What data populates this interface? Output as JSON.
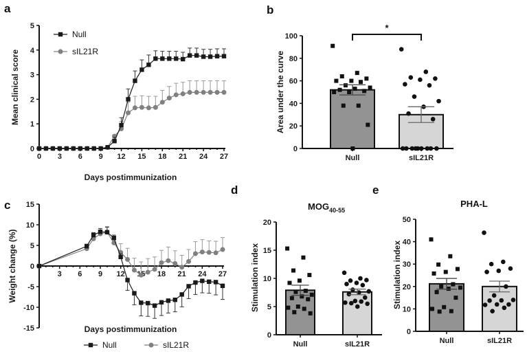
{
  "panel_labels": {
    "a": "a",
    "b": "b",
    "c": "c",
    "d": "d",
    "e": "e"
  },
  "colors": {
    "null": "#1a1a1a",
    "sil21r": "#808080",
    "null_bar": "#939393",
    "sil21r_bar": "#d6d6d6"
  },
  "chart_data": [
    {
      "id": "a",
      "type": "line",
      "title": "",
      "xlabel": "Days postimmunization",
      "ylabel": "Mean clinical score",
      "xlim": [
        0,
        27
      ],
      "ylim": [
        0,
        5
      ],
      "xticks": [
        "0",
        "3",
        "6",
        "9",
        "12",
        "15",
        "18",
        "21",
        "24",
        "27"
      ],
      "yticks": [
        "0",
        "1",
        "2",
        "3",
        "4",
        "5"
      ],
      "legend": {
        "placement": "top-left",
        "entries": [
          "Null",
          "sIL21R"
        ]
      },
      "x": [
        0,
        1,
        2,
        3,
        4,
        5,
        6,
        7,
        8,
        9,
        10,
        11,
        12,
        13,
        14,
        15,
        16,
        17,
        18,
        19,
        20,
        21,
        22,
        23,
        24,
        25,
        26,
        27
      ],
      "series": [
        {
          "name": "Null",
          "marker": "square",
          "values": [
            0,
            0,
            0,
            0,
            0,
            0,
            0,
            0,
            0,
            0,
            0.05,
            0.3,
            0.95,
            2.0,
            2.75,
            3.2,
            3.4,
            3.65,
            3.65,
            3.65,
            3.65,
            3.63,
            3.78,
            3.78,
            3.73,
            3.73,
            3.75,
            3.75
          ],
          "sem": [
            0,
            0,
            0,
            0,
            0,
            0,
            0,
            0,
            0,
            0,
            0.02,
            0.15,
            0.3,
            0.42,
            0.4,
            0.4,
            0.4,
            0.32,
            0.3,
            0.3,
            0.3,
            0.28,
            0.3,
            0.3,
            0.3,
            0.3,
            0.3,
            0.3
          ]
        },
        {
          "name": "sIL21R",
          "marker": "circle",
          "values": [
            0,
            0,
            0,
            0,
            0,
            0,
            0,
            0,
            0,
            0,
            0.05,
            0.5,
            0.8,
            1.45,
            1.65,
            1.67,
            1.65,
            1.67,
            1.88,
            2.05,
            2.18,
            2.22,
            2.28,
            2.28,
            2.28,
            2.28,
            2.28,
            2.28
          ],
          "sem": [
            0,
            0,
            0,
            0,
            0,
            0,
            0,
            0,
            0,
            0,
            0.02,
            0.05,
            0.3,
            0.43,
            0.47,
            0.47,
            0.47,
            0.45,
            0.48,
            0.47,
            0.47,
            0.47,
            0.47,
            0.47,
            0.47,
            0.47,
            0.47,
            0.47
          ]
        }
      ]
    },
    {
      "id": "b",
      "type": "bar",
      "title": "",
      "xlabel": "",
      "ylabel": "Area under the curve",
      "ylim": [
        0,
        100
      ],
      "yticks": [
        "0",
        "20",
        "40",
        "60",
        "80",
        "100"
      ],
      "categories": [
        "Null",
        "sIL21R"
      ],
      "significance": "*",
      "series": [
        {
          "name": "Null",
          "mean": 52,
          "sem": 4.5,
          "marker": "square",
          "points": [
            91,
            67,
            64,
            62,
            60,
            60,
            59,
            56,
            54,
            53,
            52,
            51,
            50,
            50,
            38,
            38,
            21,
            0
          ]
        },
        {
          "name": "sIL21R",
          "mean": 30,
          "sem": 7,
          "marker": "circle",
          "points": [
            88,
            68,
            63,
            62,
            61,
            57,
            56,
            46,
            42,
            37,
            31,
            26,
            0,
            0,
            0,
            0,
            0,
            0,
            0,
            0,
            0
          ]
        }
      ]
    },
    {
      "id": "c",
      "type": "line",
      "title": "",
      "xlabel": "Days postimmunization",
      "ylabel": "Weight change (%)",
      "xlim": [
        0,
        27
      ],
      "ylim": [
        -15,
        15
      ],
      "xticks": [
        "3",
        "6",
        "9",
        "12",
        "15",
        "18",
        "21",
        "24",
        "27"
      ],
      "yticks": [
        "-15",
        "-10",
        "-5",
        "0",
        "5",
        "10",
        "15"
      ],
      "legend": {
        "placement": "bottom",
        "entries": [
          "Null",
          "sIL21R"
        ]
      },
      "x": [
        0,
        7,
        8,
        9,
        10,
        11,
        12,
        13,
        14,
        15,
        16,
        17,
        18,
        19,
        20,
        21,
        22,
        23,
        24,
        25,
        26,
        27
      ],
      "series": [
        {
          "name": "Null",
          "marker": "square",
          "values": [
            0,
            4.8,
            7.5,
            8.3,
            8.2,
            6.8,
            2.2,
            -3.4,
            -6.6,
            -8.9,
            -9.0,
            -9.6,
            -8.8,
            -8.4,
            -8.2,
            -6.9,
            -4.9,
            -4.0,
            -3.6,
            -3.8,
            -3.9,
            -4.8
          ],
          "sem": [
            0,
            0.5,
            0.6,
            0.8,
            1.2,
            0.7,
            0.8,
            2.5,
            2.8,
            3.2,
            3.2,
            3.1,
            3.2,
            3.0,
            2.9,
            3.0,
            3.0,
            2.9,
            2.9,
            2.8,
            3.1,
            3.3
          ]
        },
        {
          "name": "sIL21R",
          "marker": "circle",
          "values": [
            0,
            4.2,
            6.6,
            7.8,
            8.2,
            5.6,
            3.3,
            1.6,
            -1.0,
            -2.2,
            -1.5,
            -0.8,
            0.8,
            1.3,
            0.6,
            -0.3,
            1.1,
            3.0,
            3.4,
            3.3,
            3.2,
            4.0
          ],
          "sem": [
            0,
            0.4,
            0.5,
            0.8,
            1.4,
            1.5,
            2.1,
            2.7,
            2.9,
            3.2,
            3.3,
            3.0,
            3.0,
            3.3,
            3.1,
            2.9,
            2.9,
            2.9,
            3.0,
            2.8,
            2.8,
            2.9
          ]
        }
      ]
    },
    {
      "id": "d",
      "type": "bar",
      "title": "MOG",
      "title_sub": "40-55",
      "xlabel": "",
      "ylabel": "Stimulation index",
      "ylim": [
        0,
        20
      ],
      "yticks": [
        "0",
        "5",
        "10",
        "15",
        "20"
      ],
      "categories": [
        "Null",
        "sIL21R"
      ],
      "series": [
        {
          "name": "Null",
          "mean": 7.9,
          "sem": 0.9,
          "marker": "square",
          "points": [
            15.3,
            13.7,
            11.4,
            10.6,
            9.6,
            9.2,
            7.8,
            7.6,
            7.1,
            6.8,
            6.5,
            6.3,
            5.0,
            4.8,
            4.6,
            4.0,
            3.8
          ]
        },
        {
          "name": "sIL21R",
          "mean": 7.6,
          "sem": 0.5,
          "marker": "circle",
          "points": [
            11.0,
            10.0,
            9.6,
            9.7,
            9.2,
            9.0,
            8.8,
            8.0,
            7.7,
            7.5,
            7.2,
            6.6,
            6.0,
            5.7,
            5.9,
            5.6,
            5.5,
            5.0
          ]
        }
      ]
    },
    {
      "id": "e",
      "type": "bar",
      "title": "PHA-L",
      "xlabel": "",
      "ylabel": "Stimulation index",
      "ylim": [
        0,
        50
      ],
      "yticks": [
        "0",
        "10",
        "20",
        "30",
        "40",
        "50"
      ],
      "categories": [
        "Null",
        "sIL21R"
      ],
      "series": [
        {
          "name": "Null",
          "mean": 21.2,
          "sem": 2.4,
          "marker": "square",
          "points": [
            41,
            33.5,
            29.8,
            27.8,
            26.5,
            25.8,
            21,
            20,
            19.5,
            19,
            17.5,
            15,
            10.8,
            10,
            9,
            8.8
          ]
        },
        {
          "name": "sIL21R",
          "mean": 20,
          "sem": 2.4,
          "marker": "circle",
          "points": [
            44,
            31,
            30,
            28,
            27,
            26.5,
            20,
            16,
            14,
            13.8,
            13.7,
            12,
            12,
            11.8,
            10.5,
            9
          ]
        }
      ]
    }
  ]
}
